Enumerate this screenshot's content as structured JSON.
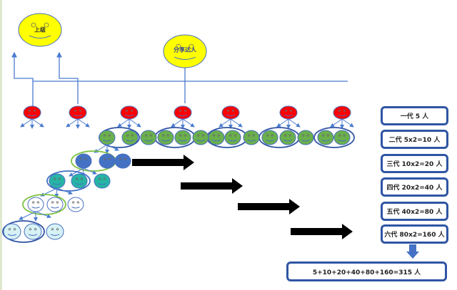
{
  "top": {
    "superior_label": "上级",
    "sharer_label": "分享达人"
  },
  "generations": [
    {
      "label": "一代 5 人",
      "color": "#ff0000"
    },
    {
      "label": "二代 5x2=10 人",
      "color": "#6ab04c"
    },
    {
      "label": "三代 10x2=20 人",
      "color": "#4472c4"
    },
    {
      "label": "四代 20x2=40 人",
      "color": "#26b5a5"
    },
    {
      "label": "五代 40x2=80 人",
      "color": "#ffffff"
    },
    {
      "label": "六代 80x2=160 人",
      "color": "#d6f2f5"
    }
  ],
  "total": "5+10+20+40+80+160=315 人",
  "colors": {
    "face_yellow": "#ffff00",
    "line_blue": "#4a7bd0",
    "box_border": "#2f55a4",
    "arrow": "#000000"
  }
}
